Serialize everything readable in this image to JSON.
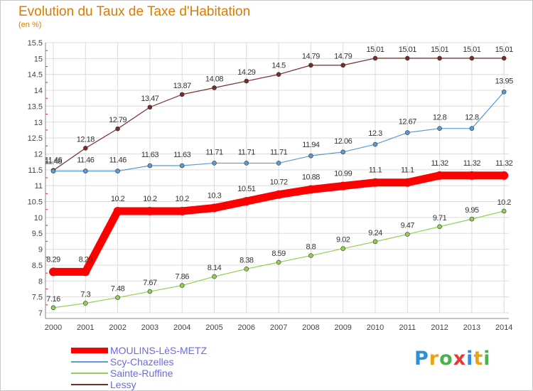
{
  "chart_data": {
    "type": "line",
    "title": "Evolution du Taux de Taxe d'Habitation",
    "subtitle": "(en %)",
    "xlabel": "",
    "ylabel": "",
    "categories": [
      "2000",
      "2001",
      "2002",
      "2003",
      "2004",
      "2005",
      "2006",
      "2007",
      "2008",
      "2009",
      "2010",
      "2011",
      "2012",
      "2013",
      "2014"
    ],
    "ylim": [
      7,
      15.5
    ],
    "yticks": [
      "7",
      "7.5",
      "8",
      "8.5",
      "9",
      "9.5",
      "10",
      "10.5",
      "11",
      "11.5",
      "12",
      "12.5",
      "13",
      "13.5",
      "14",
      "14.5",
      "15",
      "15.5"
    ],
    "grid": true,
    "legend_position": "bottom-left",
    "series": [
      {
        "name": "MOULINS-LèS-METZ",
        "color": "#ff0000",
        "values": [
          8.29,
          8.29,
          10.2,
          10.2,
          10.2,
          10.3,
          10.51,
          10.72,
          10.88,
          10.99,
          11.1,
          11.1,
          11.32,
          11.32,
          11.32
        ],
        "labels": [
          "8.29",
          "8.29",
          "10.2",
          "10.2",
          "10.2",
          "10.3",
          "10.51",
          "10.72",
          "10.88",
          "10.99",
          "11.1",
          "11.1",
          "11.32",
          "11.32",
          "11.32"
        ]
      },
      {
        "name": "Scy-Chazelles",
        "color": "#5b9bd5",
        "values": [
          11.46,
          11.46,
          11.46,
          11.63,
          11.63,
          11.71,
          11.71,
          11.71,
          11.94,
          12.06,
          12.3,
          12.67,
          12.8,
          12.8,
          13.95
        ],
        "labels": [
          "11.46",
          "11.46",
          "11.46",
          "11.63",
          "11.63",
          "11.71",
          "11.71",
          "11.71",
          "11.94",
          "12.06",
          "12.3",
          "12.67",
          "12.8",
          "12.8",
          "13.95"
        ]
      },
      {
        "name": "Sainte-Ruffine",
        "color": "#92d050",
        "values": [
          7.16,
          7.3,
          7.48,
          7.67,
          7.86,
          8.14,
          8.38,
          8.59,
          8.8,
          9.02,
          9.24,
          9.47,
          9.71,
          9.95,
          10.2
        ],
        "labels": [
          "7.16",
          "7.3",
          "7.48",
          "7.67",
          "7.86",
          "8.14",
          "8.38",
          "8.59",
          "8.8",
          "9.02",
          "9.24",
          "9.47",
          "9.71",
          "9.95",
          "10.2"
        ]
      },
      {
        "name": "Lessy",
        "color": "#7b2b2b",
        "values": [
          11.48,
          12.18,
          12.79,
          13.47,
          13.87,
          14.08,
          14.29,
          14.5,
          14.79,
          14.79,
          15.01,
          15.01,
          15.01,
          15.01,
          15.01
        ],
        "labels": [
          "11.48",
          "12.18",
          "12.79",
          "13.47",
          "13.87",
          "14.08",
          "14.29",
          "14.5",
          "14.79",
          "14.79",
          "15.01",
          "15.01",
          "15.01",
          "15.01",
          "15.01"
        ]
      }
    ]
  },
  "brand": {
    "letters": [
      "P",
      "r",
      "o",
      "x",
      "i",
      "t",
      "i"
    ],
    "colors": [
      "#2e8fd6",
      "#e8a317",
      "#4caf50",
      "#e53935",
      "#2e8fd6",
      "#e8a317",
      "#4caf50"
    ]
  }
}
